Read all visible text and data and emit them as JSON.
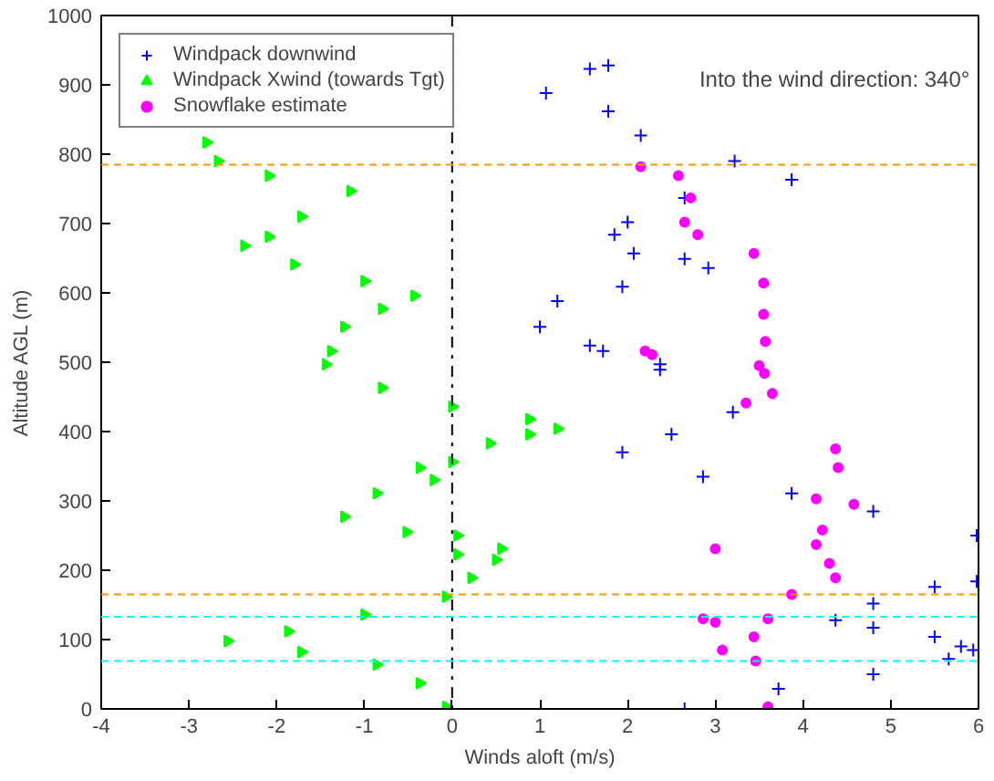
{
  "chart_data": {
    "type": "scatter",
    "xlabel": "Winds aloft (m/s)",
    "ylabel": "Altitude AGL (m)",
    "xlim": [
      -4,
      6
    ],
    "ylim": [
      0,
      1000
    ],
    "xticks": [
      -4,
      -3,
      -2,
      -1,
      0,
      1,
      2,
      3,
      4,
      5,
      6
    ],
    "yticks": [
      0,
      100,
      200,
      300,
      400,
      500,
      600,
      700,
      800,
      900,
      1000
    ],
    "grid": false,
    "legend": "top left",
    "annotations": [
      "Into the wind direction: 340°"
    ],
    "series": [
      {
        "name": "Windpack downwind",
        "color": "#0000ff",
        "marker": "cross",
        "x": [
          2.65,
          3.72,
          4.8,
          5.66,
          5.94,
          5.8,
          5.5,
          4.8,
          4.37,
          4.8,
          5.5,
          5.98,
          null,
          5.98,
          4.8,
          3.87,
          2.86,
          1.94,
          2.5,
          3.2,
          2.37,
          1.72,
          2.37,
          1.57,
          1.0,
          1.2,
          1.94,
          2.92,
          2.65,
          2.07,
          1.85,
          2.0,
          2.65,
          3.87,
          3.22,
          2.15,
          1.78,
          1.07,
          1.57,
          1.78
        ],
        "values": [
          0,
          29,
          50,
          72,
          85,
          90,
          104,
          117,
          128,
          152,
          176,
          184,
          null,
          250,
          285,
          311,
          335,
          370,
          396,
          428,
          489,
          516,
          497,
          524,
          551,
          588,
          609,
          636,
          649,
          657,
          684,
          702,
          737,
          763,
          790,
          827,
          862,
          888,
          923,
          928
        ]
      },
      {
        "name": "Windpack Xwind (towards Tgt)",
        "color": "#00ff00",
        "marker": "triangle",
        "x": [
          -0.07,
          -0.37,
          -0.86,
          -1.72,
          -2.56,
          -1.87,
          -1.0,
          -0.07,
          0.22,
          0.5,
          0.06,
          0.56,
          0.06,
          -0.52,
          -1.23,
          -0.86,
          -0.21,
          -0.37,
          0.0,
          0.43,
          0.88,
          1.2,
          0.88,
          0.0,
          -0.8,
          -1.44,
          -1.38,
          -1.23,
          -0.8,
          -0.43,
          -1.0,
          -1.8,
          -2.37,
          -2.09,
          -1.72,
          -1.16,
          -2.09,
          -2.67,
          -2.8
        ],
        "values": [
          3,
          37,
          64,
          82,
          98,
          112,
          136,
          162,
          189,
          215,
          223,
          231,
          250,
          255,
          277,
          311,
          330,
          348,
          356,
          383,
          396,
          404,
          418,
          436,
          463,
          497,
          516,
          551,
          577,
          596,
          617,
          641,
          668,
          681,
          710,
          747,
          769,
          790,
          817
        ]
      },
      {
        "name": "Snowflake estimate",
        "color": "#ff00ff",
        "marker": "circle",
        "x": [
          3.6,
          3.46,
          3.08,
          3.44,
          3.0,
          2.86,
          3.6,
          3.87,
          4.37,
          4.3,
          3.0,
          4.15,
          4.22,
          4.58,
          4.15,
          4.4,
          4.37,
          3.35,
          3.65,
          3.56,
          2.28,
          3.5,
          2.2,
          3.57,
          3.55,
          3.55,
          3.44,
          2.8,
          2.65,
          2.72,
          2.58,
          2.15
        ],
        "values": [
          3,
          69,
          85,
          104,
          125,
          130,
          130,
          165,
          189,
          210,
          231,
          237,
          258,
          295,
          303,
          348,
          375,
          441,
          455,
          484,
          511,
          495,
          516,
          530,
          569,
          614,
          657,
          684,
          702,
          737,
          769,
          782
        ]
      }
    ],
    "ref_lines": [
      {
        "axis": "x",
        "value": 0,
        "color": "#000000",
        "line_style": "dashdot"
      },
      {
        "axis": "y",
        "value": 785,
        "color": "#ff9900",
        "line_style": "dashed"
      },
      {
        "axis": "y",
        "value": 165,
        "color": "#ff9900",
        "line_style": "dashed"
      },
      {
        "axis": "y",
        "value": 133,
        "color": "#00ffff",
        "line_style": "dashed"
      },
      {
        "axis": "y",
        "value": 69,
        "color": "#00ffff",
        "line_style": "dashed"
      }
    ]
  }
}
